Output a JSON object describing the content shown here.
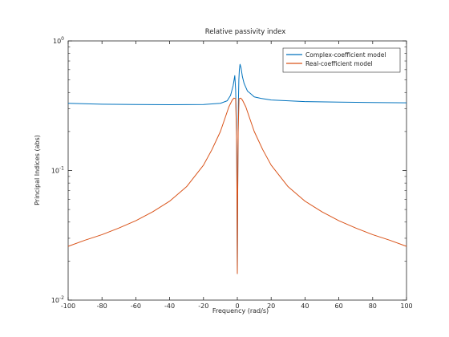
{
  "chart_data": {
    "type": "line",
    "title": "Relative passivity index",
    "xlabel": "Frequency (rad/s)",
    "ylabel": "Principal Indices (abs)",
    "xlim": [
      -100,
      100
    ],
    "ylim": [
      0.01,
      1
    ],
    "yscale": "log",
    "grid": false,
    "legend_position": "top-right",
    "xticks": [
      -100,
      -80,
      -60,
      -40,
      -20,
      0,
      20,
      40,
      60,
      80,
      100
    ],
    "yticks": [
      {
        "value": 0.01,
        "label": "10",
        "exp": "-2"
      },
      {
        "value": 0.1,
        "label": "10",
        "exp": "-1"
      },
      {
        "value": 1,
        "label": "10",
        "exp": "0"
      }
    ],
    "series": [
      {
        "name": "Complex-coefficient model",
        "color": "#0072BD",
        "x": [
          -100,
          -80,
          -60,
          -40,
          -20,
          -10,
          -6,
          -4,
          -2.5,
          -1.5,
          -1,
          -0.6,
          -0.3,
          0,
          0.1,
          0.3,
          0.6,
          0.9,
          1.2,
          1.6,
          2.2,
          3,
          4,
          6,
          8,
          10,
          14,
          20,
          30,
          40,
          60,
          80,
          100
        ],
        "y": [
          0.33,
          0.325,
          0.323,
          0.322,
          0.323,
          0.33,
          0.345,
          0.38,
          0.45,
          0.54,
          0.42,
          0.25,
          0.12,
          0.016,
          0.03,
          0.1,
          0.32,
          0.5,
          0.6,
          0.66,
          0.62,
          0.53,
          0.47,
          0.41,
          0.39,
          0.37,
          0.36,
          0.35,
          0.345,
          0.34,
          0.337,
          0.335,
          0.333
        ]
      },
      {
        "name": "Real-coefficient model",
        "color": "#D95319",
        "x": [
          -100,
          -90,
          -80,
          -70,
          -60,
          -50,
          -40,
          -30,
          -20,
          -15,
          -10,
          -7,
          -5,
          -3,
          -2,
          -1,
          -0.5,
          -0.2,
          0,
          0.2,
          0.5,
          1,
          2,
          3,
          5,
          7,
          10,
          15,
          20,
          30,
          40,
          50,
          60,
          70,
          80,
          90,
          100
        ],
        "y": [
          0.026,
          0.029,
          0.032,
          0.036,
          0.041,
          0.048,
          0.058,
          0.075,
          0.11,
          0.145,
          0.2,
          0.26,
          0.31,
          0.35,
          0.362,
          0.358,
          0.2,
          0.06,
          0.016,
          0.06,
          0.2,
          0.358,
          0.362,
          0.35,
          0.31,
          0.26,
          0.2,
          0.145,
          0.11,
          0.075,
          0.058,
          0.048,
          0.041,
          0.036,
          0.032,
          0.029,
          0.026
        ]
      }
    ]
  }
}
